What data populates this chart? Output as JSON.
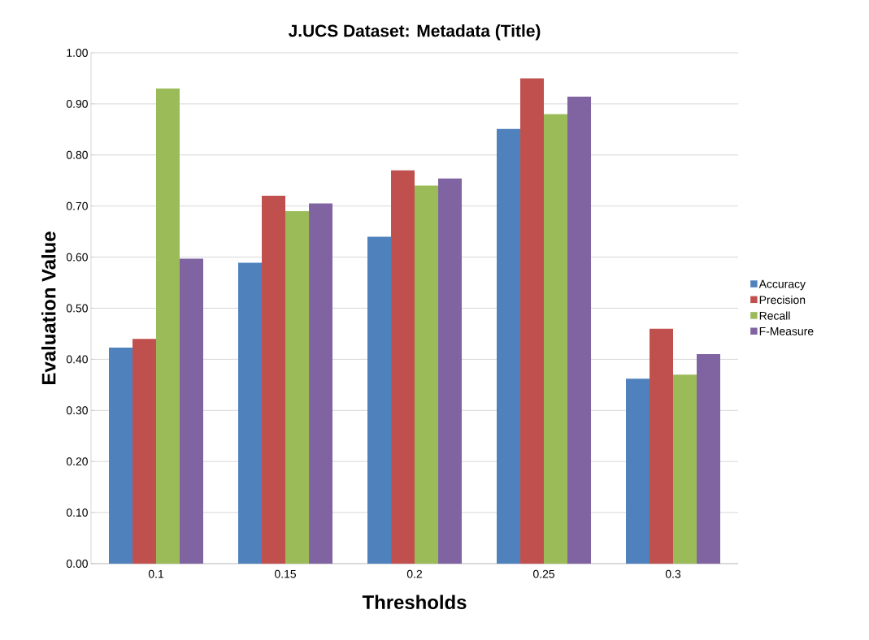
{
  "chart_data": {
    "type": "bar",
    "title": "J.UCS Dataset: Metadata (Title)",
    "xlabel": "Thresholds",
    "ylabel": "Evaluation Value",
    "categories": [
      "0.1",
      "0.15",
      "0.2",
      "0.25",
      "0.3"
    ],
    "series": [
      {
        "name": "Accuracy",
        "color": "#4f81bd",
        "values": [
          0.423,
          0.589,
          0.64,
          0.851,
          0.362
        ]
      },
      {
        "name": "Precision",
        "color": "#c0504d",
        "values": [
          0.44,
          0.72,
          0.77,
          0.95,
          0.46
        ]
      },
      {
        "name": "Recall",
        "color": "#9bbb59",
        "values": [
          0.93,
          0.69,
          0.74,
          0.88,
          0.37
        ]
      },
      {
        "name": "F-Measure",
        "color": "#8064a2",
        "values": [
          0.597,
          0.705,
          0.754,
          0.914,
          0.41
        ]
      }
    ],
    "ylim": [
      0,
      1
    ],
    "yticks": [
      {
        "value": 0,
        "label": "0.00"
      },
      {
        "value": 0.1,
        "label": "0.10"
      },
      {
        "value": 0.2,
        "label": "0.20"
      },
      {
        "value": 0.3,
        "label": "0.30"
      },
      {
        "value": 0.4,
        "label": "0.40"
      },
      {
        "value": 0.5,
        "label": "0.50"
      },
      {
        "value": 0.6,
        "label": "0.60"
      },
      {
        "value": 0.7,
        "label": "0.70"
      },
      {
        "value": 0.8,
        "label": "0.80"
      },
      {
        "value": 0.9,
        "label": "0.90"
      },
      {
        "value": 1,
        "label": "1.00"
      }
    ],
    "grid": "y",
    "legend": "right"
  }
}
